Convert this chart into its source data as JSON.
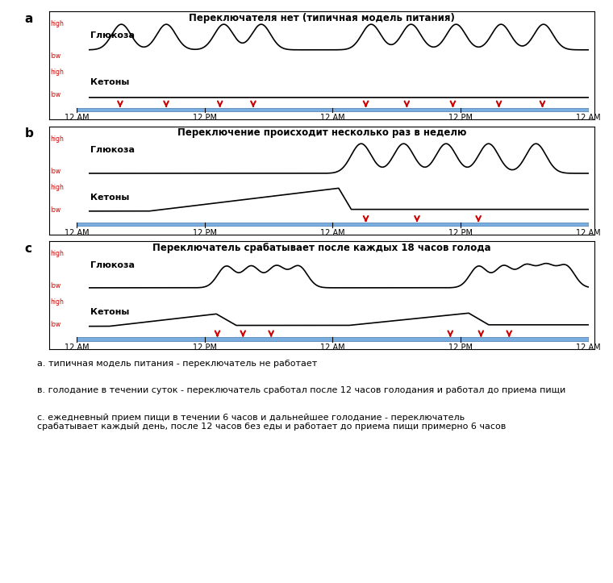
{
  "title_a": "Переключателя нет (типичная модель питания)",
  "title_b": "Переключение происходит несколько раз в неделю",
  "title_c": "Переключатель срабатывает после каждых 18 часов голода",
  "label_glucose": "Глюкоза",
  "label_ketones": "Кетоны",
  "label_high": "high",
  "label_low": "low",
  "xtick_labels": [
    "12 AM",
    "12 PM",
    "12 AM",
    "12 PM",
    "12 AM"
  ],
  "xtick_positions": [
    0.0,
    0.25,
    0.5,
    0.75,
    1.0
  ],
  "caption_a": "а. типичная модель питания - переключатель не работает",
  "caption_b": "в. голодание в течении суток - переключатель сработал после 12 часов голодания и работал до приема пищи",
  "caption_c": "с. ежедневный прием пищи в течении 6 часов и дальнейшее голодание - переключатель\nсрабатывает каждый день, после 12 часов без еды и работает до приема пищи примерно 6 часов",
  "panel_label_color": "#000000",
  "title_color": "#000000",
  "glucose_color": "#000000",
  "ketone_color": "#000000",
  "high_low_color": "#cc0000",
  "arrow_color": "#cc0000",
  "timeline_color": "#7aade0",
  "tick_label_color": "#000000",
  "background_color": "#ffffff",
  "caption_color": "#000000"
}
